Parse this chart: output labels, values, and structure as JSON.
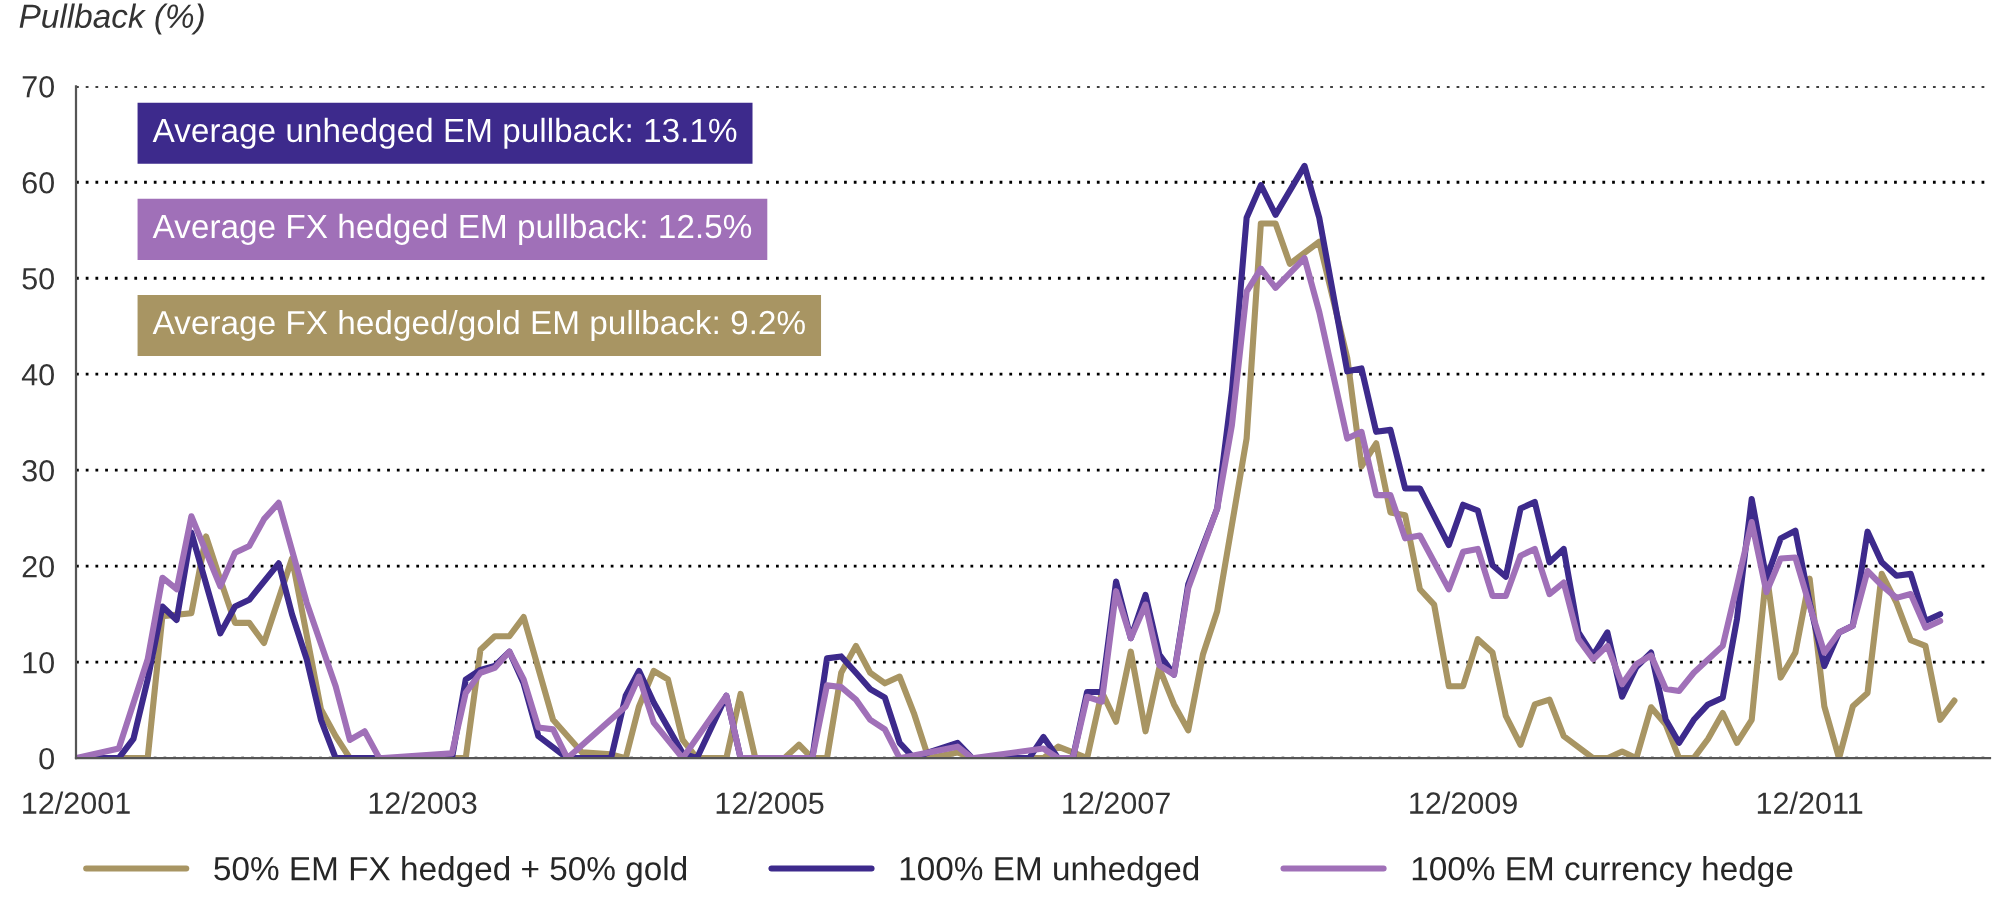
{
  "chart_data": {
    "type": "line",
    "ylabel": "Pullback (%)",
    "annotations": [
      "Average unhedged EM pullback: 13.1%",
      "Average FX hedged EM pullback: 12.5%",
      "Average FX hedged/gold EM pullback: 9.2%"
    ],
    "series": [
      {
        "name": "50% EM FX hedged + 50% gold",
        "color": "#a89563",
        "x": [
          "2001-12",
          "2002-05",
          "2002-06",
          "2002-08",
          "2002-09",
          "2002-10",
          "2002-11",
          "2002-12",
          "2003-01",
          "2003-03",
          "2003-05",
          "2003-06",
          "2003-07",
          "2004-03",
          "2004-04",
          "2004-05",
          "2004-06",
          "2004-07",
          "2004-09",
          "2004-11",
          "2005-01",
          "2005-02",
          "2005-03",
          "2005-04",
          "2005-05",
          "2005-06",
          "2005-07",
          "2005-09",
          "2005-10",
          "2005-11",
          "2006-01",
          "2006-02",
          "2006-03",
          "2006-04",
          "2006-05",
          "2006-06",
          "2006-07",
          "2006-08",
          "2006-09",
          "2006-10",
          "2006-11",
          "2007-01",
          "2007-02",
          "2007-07",
          "2007-08",
          "2007-09",
          "2007-10",
          "2007-11",
          "2007-12",
          "2008-01",
          "2008-02",
          "2008-03",
          "2008-04",
          "2008-05",
          "2008-06",
          "2008-07",
          "2008-09",
          "2008-10",
          "2008-11",
          "2008-12",
          "2009-02",
          "2009-04",
          "2009-05",
          "2009-06",
          "2009-07",
          "2009-08",
          "2009-09",
          "2009-10",
          "2009-11",
          "2009-12",
          "2010-01",
          "2010-02",
          "2010-03",
          "2010-04",
          "2010-05",
          "2010-06",
          "2010-07",
          "2010-09",
          "2010-10",
          "2010-11",
          "2010-12",
          "2011-01",
          "2011-02",
          "2011-03",
          "2011-04",
          "2011-05",
          "2011-06",
          "2011-07",
          "2011-08",
          "2011-09",
          "2011-10",
          "2011-11",
          "2011-12",
          "2012-01",
          "2012-02",
          "2012-03",
          "2012-04",
          "2012-05",
          "2012-06",
          "2012-07",
          "2012-08",
          "2012-09",
          "2012-10"
        ],
        "values": [
          0,
          0,
          14.8,
          15.1,
          23.1,
          18.6,
          14.1,
          14.1,
          12,
          20.8,
          5.1,
          2.3,
          0,
          0,
          11.3,
          12.7,
          12.7,
          14.7,
          4,
          0.6,
          0.4,
          0,
          5.4,
          9.1,
          8.2,
          1.9,
          0,
          0,
          6.7,
          0,
          0,
          1.4,
          0,
          0,
          8.9,
          11.7,
          8.9,
          7.8,
          8.5,
          4.7,
          0,
          0.6,
          0,
          0,
          1.2,
          0.6,
          0,
          6.9,
          3.8,
          11.1,
          2.8,
          9.4,
          5.6,
          2.9,
          10.8,
          15.3,
          33.3,
          55.7,
          55.7,
          51.5,
          53.8,
          41.7,
          30.4,
          32.8,
          25.6,
          25.3,
          17.6,
          16,
          7.5,
          7.5,
          12.4,
          11,
          4.4,
          1.4,
          5.6,
          6.1,
          2.3,
          0,
          0,
          0.7,
          0,
          5.3,
          3.5,
          0,
          0,
          2,
          4.7,
          1.6,
          4,
          19.4,
          8.4,
          11,
          18.7,
          5.4,
          0,
          5.4,
          6.8,
          19.2,
          16.2,
          12.3,
          11.7,
          4,
          6
        ]
      },
      {
        "name": "100% EM unhedged",
        "color": "#3d2a8c",
        "x": [
          "2001-12",
          "2002-03",
          "2002-04",
          "2002-05",
          "2002-06",
          "2002-07",
          "2002-08",
          "2002-10",
          "2002-11",
          "2002-12",
          "2003-02",
          "2003-03",
          "2003-04",
          "2003-05",
          "2003-06",
          "2004-02",
          "2004-03",
          "2004-04",
          "2004-05",
          "2004-06",
          "2004-07",
          "2004-08",
          "2004-10",
          "2005-01",
          "2005-02",
          "2005-03",
          "2005-04",
          "2005-06",
          "2005-07",
          "2005-09",
          "2005-10",
          "2006-03",
          "2006-04",
          "2006-05",
          "2006-06",
          "2006-07",
          "2006-08",
          "2006-09",
          "2006-10",
          "2006-11",
          "2007-01",
          "2007-02",
          "2007-06",
          "2007-07",
          "2007-08",
          "2007-09",
          "2007-10",
          "2007-11",
          "2007-12",
          "2008-01",
          "2008-02",
          "2008-03",
          "2008-04",
          "2008-05",
          "2008-07",
          "2008-08",
          "2008-09",
          "2008-10",
          "2008-11",
          "2009-01",
          "2009-02",
          "2009-04",
          "2009-05",
          "2009-06",
          "2009-07",
          "2009-08",
          "2009-09",
          "2009-11",
          "2009-12",
          "2010-01",
          "2010-02",
          "2010-03",
          "2010-04",
          "2010-05",
          "2010-06",
          "2010-07",
          "2010-08",
          "2010-09",
          "2010-10",
          "2010-11",
          "2010-12",
          "2011-01",
          "2011-02",
          "2011-03",
          "2011-04",
          "2011-05",
          "2011-06",
          "2011-07",
          "2011-08",
          "2011-09",
          "2011-10",
          "2011-11",
          "2011-12",
          "2012-01",
          "2012-02",
          "2012-03",
          "2012-04",
          "2012-05",
          "2012-06",
          "2012-07",
          "2012-08",
          "2012-09"
        ],
        "values": [
          0,
          0,
          2,
          8.2,
          15.8,
          14.4,
          23.5,
          13,
          15.8,
          16.5,
          20.3,
          15,
          10.3,
          4,
          0,
          0,
          8.2,
          9.2,
          9.6,
          11.1,
          7.8,
          2.3,
          0,
          0,
          6.5,
          9.1,
          5.8,
          0.5,
          0,
          6.5,
          0,
          0,
          10.4,
          10.6,
          8.9,
          7.2,
          6.3,
          1.6,
          0,
          0.6,
          1.6,
          0,
          0,
          2.2,
          0,
          0,
          6.9,
          6.9,
          18.4,
          12.5,
          17,
          10.8,
          8.7,
          18.1,
          26,
          38.2,
          56.3,
          59.7,
          56.6,
          61.7,
          56.3,
          40.3,
          40.6,
          34,
          34.2,
          28.1,
          28.1,
          22.2,
          26.4,
          25.8,
          20.1,
          18.9,
          26,
          26.7,
          20.4,
          21.8,
          13.1,
          10.7,
          13.1,
          6.4,
          9.5,
          11,
          4,
          1.6,
          4,
          5.6,
          6.3,
          14.5,
          27,
          18.7,
          22.9,
          23.7,
          16.2,
          9.6,
          13.1,
          13.8,
          23.6,
          20.4,
          19,
          19.2,
          14.3,
          15
        ]
      },
      {
        "name": "100% EM currency hedge",
        "color": "#a070b8",
        "x": [
          "2001-12",
          "2002-03",
          "2002-05",
          "2002-06",
          "2002-07",
          "2002-08",
          "2002-10",
          "2002-11",
          "2002-12",
          "2003-01",
          "2003-02",
          "2003-04",
          "2003-06",
          "2003-07",
          "2003-08",
          "2003-09",
          "2004-02",
          "2004-03",
          "2004-04",
          "2004-05",
          "2004-06",
          "2004-07",
          "2004-08",
          "2004-09",
          "2004-10",
          "2005-02",
          "2005-03",
          "2005-04",
          "2005-06",
          "2005-09",
          "2005-10",
          "2006-03",
          "2006-04",
          "2006-05",
          "2006-06",
          "2006-07",
          "2006-08",
          "2006-09",
          "2007-01",
          "2007-02",
          "2007-07",
          "2007-08",
          "2007-09",
          "2007-10",
          "2007-11",
          "2007-12",
          "2008-01",
          "2008-02",
          "2008-03",
          "2008-04",
          "2008-05",
          "2008-07",
          "2008-08",
          "2008-09",
          "2008-10",
          "2008-11",
          "2009-01",
          "2009-02",
          "2009-04",
          "2009-05",
          "2009-06",
          "2009-07",
          "2009-08",
          "2009-09",
          "2009-11",
          "2009-12",
          "2010-01",
          "2010-02",
          "2010-03",
          "2010-04",
          "2010-05",
          "2010-06",
          "2010-07",
          "2010-08",
          "2010-09",
          "2010-10",
          "2010-11",
          "2010-12",
          "2011-01",
          "2011-02",
          "2011-03",
          "2011-04",
          "2011-06",
          "2011-07",
          "2011-08",
          "2011-09",
          "2011-10",
          "2011-11",
          "2011-12",
          "2012-01",
          "2012-02",
          "2012-03",
          "2012-04",
          "2012-05",
          "2012-06",
          "2012-07",
          "2012-08",
          "2012-09"
        ],
        "values": [
          0,
          1,
          10.3,
          18.8,
          17.6,
          25.2,
          17.9,
          21.4,
          22.1,
          24.9,
          26.6,
          16.2,
          7.5,
          1.9,
          2.8,
          0,
          0.5,
          6.8,
          8.9,
          9.4,
          11.1,
          8.2,
          3.2,
          3,
          0,
          5.4,
          8.5,
          3.7,
          0,
          6.5,
          0,
          0,
          7.6,
          7.4,
          6.1,
          4,
          3,
          0,
          1.2,
          0,
          1,
          0,
          0,
          6.4,
          5.9,
          17.4,
          12.5,
          16,
          9.7,
          8.7,
          17.7,
          26,
          34.7,
          48.6,
          51,
          49,
          52.1,
          46.5,
          33.3,
          34,
          27.4,
          27.4,
          22.9,
          23.2,
          17.6,
          21.5,
          21.8,
          16.9,
          16.9,
          21.1,
          21.8,
          17.1,
          18.3,
          12.4,
          10.3,
          11.7,
          7.7,
          9.8,
          10.7,
          7.2,
          7,
          8.9,
          11.7,
          18,
          24.6,
          17.3,
          20.8,
          20.9,
          15.9,
          11,
          13.1,
          13.8,
          19.5,
          18,
          16.7,
          17.1,
          13.6,
          14.3
        ]
      }
    ],
    "xlim": [
      "2001-12",
      "2012-12-15"
    ],
    "xticks": [
      {
        "value": "2001-12",
        "label": "12/2001"
      },
      {
        "value": "2003-12",
        "label": "12/2003"
      },
      {
        "value": "2005-12",
        "label": "12/2005"
      },
      {
        "value": "2007-12",
        "label": "12/2007"
      },
      {
        "value": "2009-12",
        "label": "12/2009"
      },
      {
        "value": "2011-12",
        "label": "12/2011"
      }
    ],
    "ylim": [
      0,
      70
    ],
    "yticks": [
      0,
      10,
      20,
      30,
      40,
      50,
      60,
      70
    ],
    "grid": "y",
    "legend": "bottom",
    "line_style": "solid",
    "marker": "none"
  }
}
